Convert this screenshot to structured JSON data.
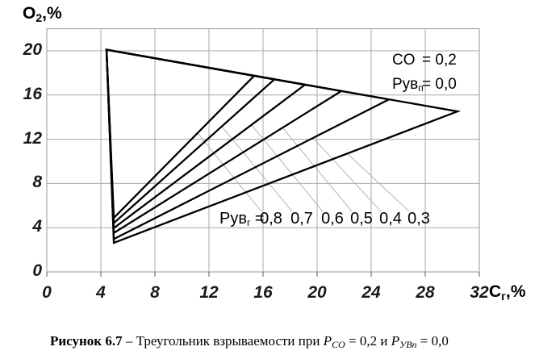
{
  "chart_data": {
    "type": "line",
    "title": "",
    "xlabel_parts": {
      "main": "C",
      "sub": "г",
      "suffix": ",%"
    },
    "ylabel_parts": {
      "main": "O",
      "sub": "2",
      "suffix": ",%"
    },
    "xlim": [
      0,
      32
    ],
    "ylim": [
      0,
      22
    ],
    "x_ticks": [
      0,
      4,
      8,
      12,
      16,
      20,
      24,
      28,
      32
    ],
    "y_ticks": [
      0,
      4,
      8,
      12,
      16,
      20
    ],
    "grid": true,
    "grid_color": "#a8a8a8",
    "line_color": "#000000",
    "leader_color": "#b3b3b3",
    "annotation": {
      "rows": [
        {
          "label_main": "CO",
          "label_sub": "",
          "value": "= 0,2"
        },
        {
          "label_main": "Рув",
          "label_sub": "п",
          "value": "= 0,0"
        }
      ]
    },
    "series_label": {
      "main": "Рув",
      "sub": "г",
      "eq": " ="
    },
    "series": [
      {
        "name": "Рувг = 0,8",
        "label": "0,8",
        "points": [
          [
            4.42,
            20.1
          ],
          [
            15.34,
            17.74
          ],
          [
            4.96,
            4.89
          ]
        ]
      },
      {
        "name": "Рувг = 0,7",
        "label": "0,7",
        "points": [
          [
            4.42,
            20.1
          ],
          [
            16.84,
            17.42
          ],
          [
            4.96,
            4.42
          ]
        ]
      },
      {
        "name": "Рувг = 0,6",
        "label": "0,6",
        "points": [
          [
            4.42,
            20.1
          ],
          [
            19.1,
            16.93
          ],
          [
            4.96,
            3.97
          ]
        ]
      },
      {
        "name": "Рувг = 0,5",
        "label": "0,5",
        "points": [
          [
            4.42,
            20.1
          ],
          [
            21.79,
            16.36
          ],
          [
            4.96,
            3.52
          ]
        ]
      },
      {
        "name": "Рувг = 0,4",
        "label": "0,4",
        "points": [
          [
            4.42,
            20.1
          ],
          [
            25.31,
            15.6
          ],
          [
            4.96,
            2.97
          ]
        ]
      },
      {
        "name": "Рувг = 0,3",
        "label": "0,3",
        "points": [
          [
            4.42,
            20.1
          ],
          [
            30.39,
            14.52
          ],
          [
            4.96,
            2.63
          ]
        ]
      }
    ],
    "leaders": [
      [
        [
          11.16,
          12.55
        ],
        [
          15.88,
          5.47
        ]
      ],
      [
        [
          12.96,
          13.14
        ],
        [
          18.15,
          5.47
        ]
      ],
      [
        [
          15.16,
          13.28
        ],
        [
          20.42,
          5.47
        ]
      ],
      [
        [
          17.43,
          13.07
        ],
        [
          22.57,
          5.47
        ]
      ],
      [
        [
          19.7,
          12.12
        ],
        [
          24.72,
          5.47
        ]
      ],
      [
        [
          22.21,
          10.73
        ],
        [
          26.81,
          5.47
        ]
      ]
    ]
  },
  "caption": {
    "bold": "Рисунок 6.7",
    "text": " – Треугольник взрываемости при ",
    "var1": "P",
    "var1_sub": "СО",
    "mid": " = 0,2 и ",
    "var2": "P",
    "var2_sub": "УВп",
    "end": " = 0,0"
  }
}
